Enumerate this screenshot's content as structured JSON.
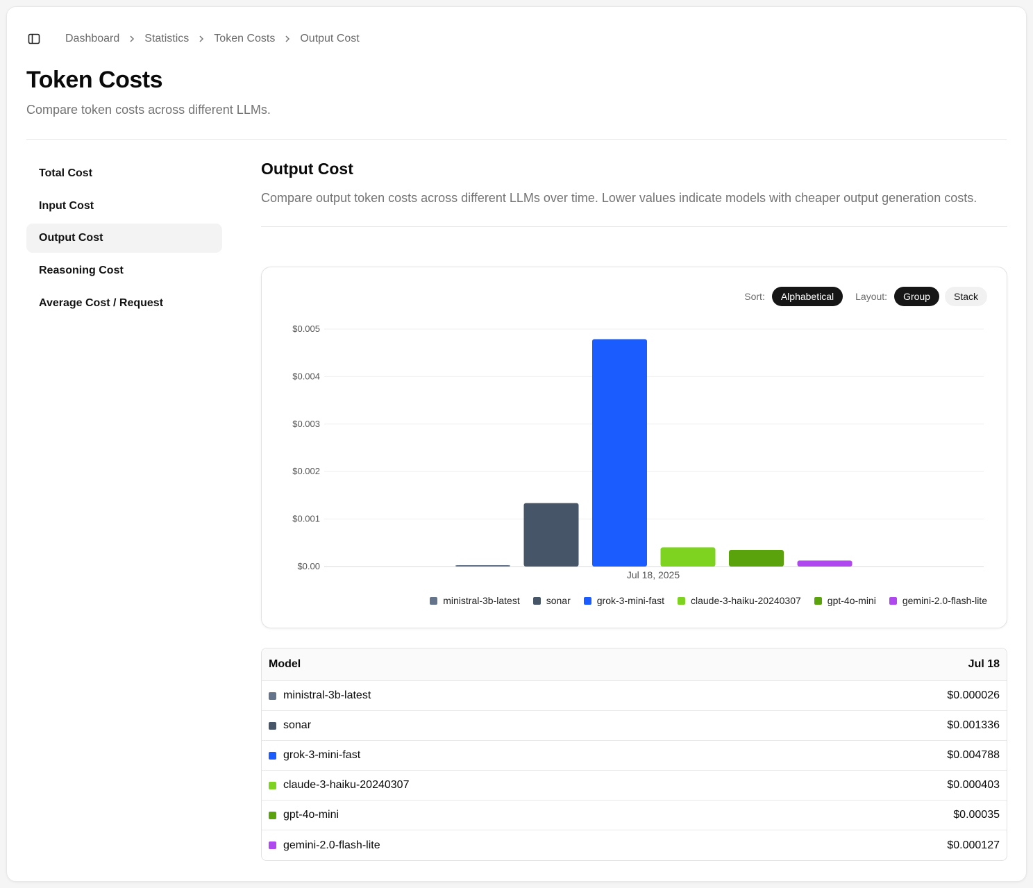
{
  "breadcrumb": [
    "Dashboard",
    "Statistics",
    "Token Costs",
    "Output Cost"
  ],
  "page": {
    "title": "Token Costs",
    "subtitle": "Compare token costs across different LLMs."
  },
  "nav": {
    "items": [
      "Total Cost",
      "Input Cost",
      "Output Cost",
      "Reasoning Cost",
      "Average Cost / Request"
    ],
    "active_index": 2
  },
  "section": {
    "title": "Output Cost",
    "description": "Compare output token costs across different LLMs over time. Lower values indicate models with cheaper output generation costs."
  },
  "controls": {
    "sort_label": "Sort:",
    "sort_value": "Alphabetical",
    "layout_label": "Layout:",
    "layout_options": [
      "Group",
      "Stack"
    ],
    "layout_selected": "Group"
  },
  "colors": {
    "ministral-3b-latest": "#64748b",
    "sonar": "#475569",
    "grok-3-mini-fast": "#1a5cff",
    "claude-3-haiku-20240307": "#7ed321",
    "gpt-4o-mini": "#5ba30c",
    "gemini-2.0-flash-lite": "#b048f0"
  },
  "chart_data": {
    "type": "bar",
    "categories": [
      "Jul 18, 2025"
    ],
    "series": [
      {
        "name": "ministral-3b-latest",
        "values": [
          2.6e-05
        ]
      },
      {
        "name": "sonar",
        "values": [
          0.001336
        ]
      },
      {
        "name": "grok-3-mini-fast",
        "values": [
          0.004788
        ]
      },
      {
        "name": "claude-3-haiku-20240307",
        "values": [
          0.000403
        ]
      },
      {
        "name": "gpt-4o-mini",
        "values": [
          0.00035
        ]
      },
      {
        "name": "gemini-2.0-flash-lite",
        "values": [
          0.000127
        ]
      }
    ],
    "ylim": [
      0,
      0.005
    ],
    "yticks": [
      "$0.00",
      "$0.001",
      "$0.002",
      "$0.003",
      "$0.004",
      "$0.005"
    ],
    "grid": true,
    "legend_position": "bottom-right"
  },
  "table": {
    "header_model": "Model",
    "header_date": "Jul 18",
    "rows": [
      {
        "model": "ministral-3b-latest",
        "value": "$0.000026"
      },
      {
        "model": "sonar",
        "value": "$0.001336"
      },
      {
        "model": "grok-3-mini-fast",
        "value": "$0.004788"
      },
      {
        "model": "claude-3-haiku-20240307",
        "value": "$0.000403"
      },
      {
        "model": "gpt-4o-mini",
        "value": "$0.00035"
      },
      {
        "model": "gemini-2.0-flash-lite",
        "value": "$0.000127"
      }
    ]
  }
}
